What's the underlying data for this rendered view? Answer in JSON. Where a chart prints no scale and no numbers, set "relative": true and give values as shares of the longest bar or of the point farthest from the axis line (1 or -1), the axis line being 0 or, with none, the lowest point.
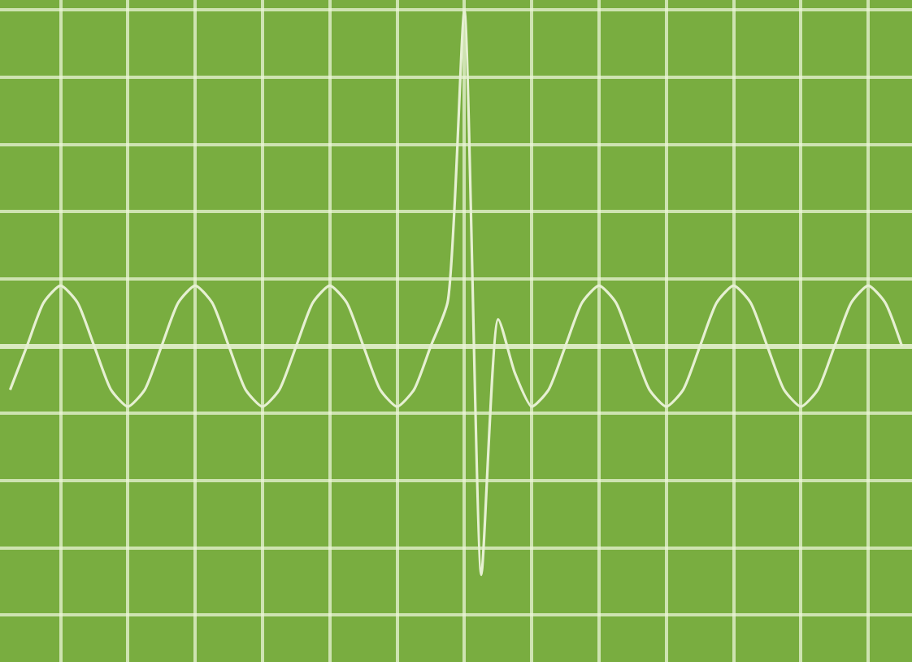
{
  "chart_data": {
    "type": "line",
    "relative": true,
    "grid": true,
    "marker": "none",
    "line_style": "solid",
    "categories": [
      null,
      null,
      null,
      null,
      null,
      null,
      null,
      null,
      null,
      null,
      null,
      null,
      null,
      null,
      null,
      null,
      null,
      null,
      null,
      null,
      null,
      null,
      null,
      null,
      null,
      null,
      null,
      null,
      null,
      null,
      null,
      null,
      null,
      null,
      null,
      null,
      null,
      null,
      null,
      null,
      null,
      null,
      null,
      null,
      null,
      null,
      null,
      null,
      null,
      null,
      null,
      null,
      null,
      null
    ],
    "series": [
      {
        "color": "#e6f0d2",
        "values": [
          -0.13,
          0,
          0.13,
          0.18,
          0.13,
          0,
          -0.13,
          -0.18,
          -0.13,
          0,
          0.13,
          0.18,
          0.13,
          0,
          -0.13,
          -0.18,
          -0.13,
          0,
          0.13,
          0.18,
          0.13,
          0,
          -0.13,
          -0.18,
          -0.13,
          0,
          0.13,
          1,
          -0.68,
          0.08,
          -0.08,
          -0.18,
          -0.13,
          0,
          0.13,
          0.18,
          0.13,
          0,
          -0.13,
          -0.18,
          -0.13,
          0,
          0.13,
          0.18,
          0.13,
          0,
          -0.13,
          -0.18,
          -0.13,
          0,
          0.13,
          0.18,
          0.13,
          0
        ]
      }
    ]
  }
}
